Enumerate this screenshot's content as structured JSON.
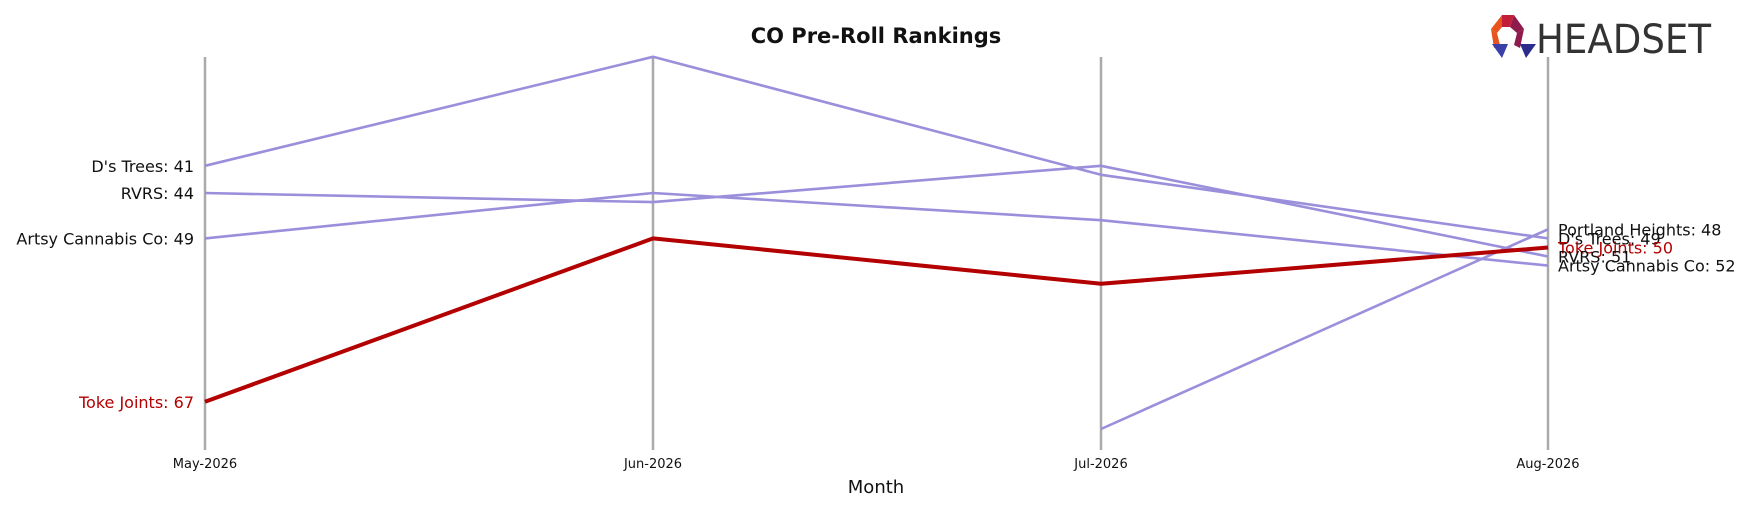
{
  "chart_data": {
    "type": "line",
    "title": "CO Pre-Roll Rankings",
    "xlabel": "Month",
    "ylabel": "",
    "categories": [
      "May-2026",
      "Jun-2026",
      "Jul-2026",
      "Aug-2026"
    ],
    "y_inverted": true,
    "ylim": [
      31,
      70
    ],
    "grid": "vertical lines at each month",
    "series": [
      {
        "name": "D's Trees",
        "values": [
          41,
          29,
          42,
          49
        ],
        "highlight": false
      },
      {
        "name": "RVRS",
        "values": [
          44,
          45,
          41,
          51
        ],
        "highlight": false
      },
      {
        "name": "Artsy Cannabis Co",
        "values": [
          49,
          44,
          47,
          52
        ],
        "highlight": false
      },
      {
        "name": "Portland Heights",
        "values": [
          null,
          null,
          70,
          48
        ],
        "highlight": false
      },
      {
        "name": "Toke Joints",
        "values": [
          67,
          49,
          54,
          50
        ],
        "highlight": true
      }
    ],
    "left_labels": [
      {
        "series": "D's Trees",
        "text": "D's Trees: 41"
      },
      {
        "series": "RVRS",
        "text": "RVRS: 44"
      },
      {
        "series": "Artsy Cannabis Co",
        "text": "Artsy Cannabis Co: 49"
      },
      {
        "series": "Toke Joints",
        "text": "Toke Joints: 67"
      }
    ],
    "right_labels": [
      {
        "series": "Portland Heights",
        "text": "Portland Heights: 48"
      },
      {
        "series": "D's Trees",
        "text": "D's Trees: 49"
      },
      {
        "series": "Toke Joints",
        "text": "Toke Joints: 50"
      },
      {
        "series": "RVRS",
        "text": "RVRS: 51"
      },
      {
        "series": "Artsy Cannabis Co",
        "text": "Artsy Cannabis Co: 52"
      }
    ],
    "colors": {
      "other_series": "#9a8fdb",
      "highlight": "#b30000",
      "gridline": "#aaaaaa",
      "label_text": "#111111"
    }
  },
  "logo": {
    "text": "HEADSET",
    "colors": [
      "#e8541e",
      "#c21f3a",
      "#8e1b4b",
      "#3b3fa8",
      "#2c2c8c"
    ]
  }
}
